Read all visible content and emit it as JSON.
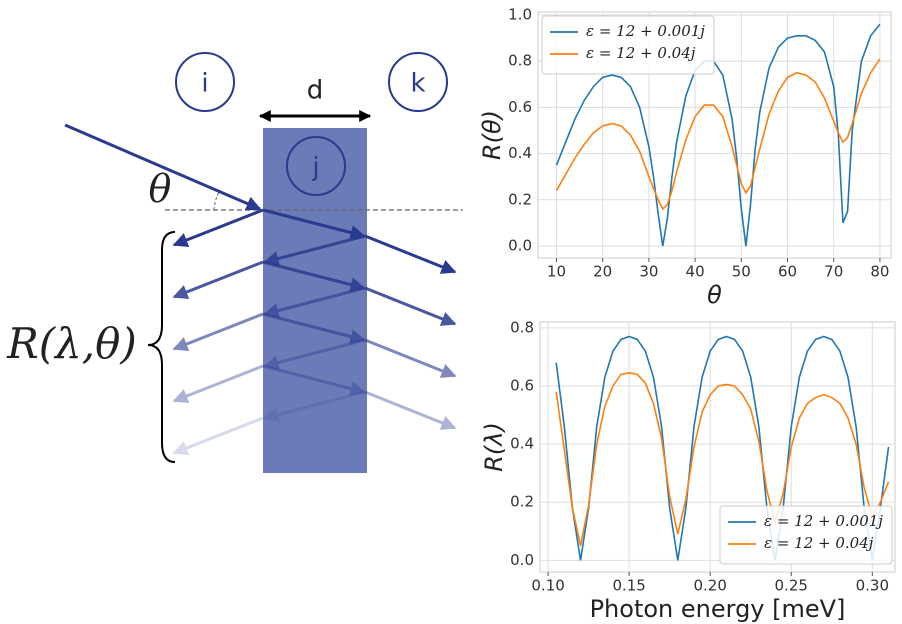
{
  "diagram": {
    "region_labels": [
      "i",
      "j",
      "k"
    ],
    "thickness_label": "d",
    "angle_label": "θ",
    "reflectance_label": "R(λ,θ)"
  },
  "chart_data": [
    {
      "type": "line",
      "xlabel": "θ",
      "ylabel": "R(θ)",
      "x": [
        10,
        12,
        14,
        16,
        18,
        20,
        22,
        24,
        26,
        28,
        30,
        31,
        32,
        33,
        34,
        35,
        36,
        38,
        40,
        42,
        44,
        46,
        48,
        49,
        50,
        51,
        52,
        53,
        54,
        56,
        58,
        60,
        62,
        64,
        66,
        68,
        70,
        71,
        72,
        73,
        74,
        76,
        78,
        80
      ],
      "series": [
        {
          "name": "ε = 12 + 0.001j",
          "color": "#1f77b4",
          "values": [
            0.35,
            0.45,
            0.55,
            0.63,
            0.69,
            0.73,
            0.74,
            0.73,
            0.69,
            0.6,
            0.43,
            0.3,
            0.14,
            0.0,
            0.12,
            0.3,
            0.45,
            0.65,
            0.76,
            0.8,
            0.8,
            0.74,
            0.55,
            0.38,
            0.16,
            0.0,
            0.18,
            0.42,
            0.58,
            0.77,
            0.86,
            0.9,
            0.91,
            0.91,
            0.89,
            0.84,
            0.69,
            0.48,
            0.1,
            0.15,
            0.5,
            0.8,
            0.91,
            0.96
          ]
        },
        {
          "name": "ε = 12 + 0.04j",
          "color": "#ff7f0e",
          "values": [
            0.24,
            0.31,
            0.38,
            0.44,
            0.49,
            0.52,
            0.53,
            0.52,
            0.48,
            0.41,
            0.3,
            0.25,
            0.2,
            0.16,
            0.18,
            0.24,
            0.32,
            0.46,
            0.56,
            0.61,
            0.61,
            0.56,
            0.43,
            0.35,
            0.27,
            0.23,
            0.26,
            0.34,
            0.42,
            0.57,
            0.67,
            0.73,
            0.75,
            0.74,
            0.71,
            0.64,
            0.54,
            0.49,
            0.45,
            0.47,
            0.53,
            0.66,
            0.75,
            0.81
          ]
        }
      ],
      "xlim": [
        6,
        82.4
      ],
      "ylim": [
        -0.052,
        1.013
      ],
      "xticks": [
        10,
        20,
        30,
        40,
        50,
        60,
        70,
        80
      ],
      "yticks": [
        {
          "value": 0,
          "label": "0.0"
        },
        0.2,
        0.4,
        0.6,
        0.8,
        {
          "value": 1,
          "label": "1.0"
        }
      ],
      "grid": true,
      "legend": "upper left"
    },
    {
      "type": "line",
      "xlabel": "Photon energy [meV]",
      "ylabel": "R(λ)",
      "x": [
        0.105,
        0.11,
        0.115,
        0.12,
        0.125,
        0.13,
        0.135,
        0.14,
        0.145,
        0.15,
        0.155,
        0.16,
        0.165,
        0.17,
        0.175,
        0.18,
        0.185,
        0.19,
        0.195,
        0.2,
        0.205,
        0.21,
        0.215,
        0.22,
        0.225,
        0.23,
        0.235,
        0.24,
        0.245,
        0.25,
        0.255,
        0.26,
        0.265,
        0.27,
        0.275,
        0.28,
        0.285,
        0.29,
        0.295,
        0.3,
        0.305,
        0.31
      ],
      "series": [
        {
          "name": "ε = 12 + 0.001j",
          "color": "#1f77b4",
          "values": [
            0.68,
            0.46,
            0.18,
            0,
            0.18,
            0.46,
            0.63,
            0.72,
            0.76,
            0.77,
            0.76,
            0.72,
            0.63,
            0.46,
            0.18,
            0,
            0.18,
            0.46,
            0.63,
            0.72,
            0.76,
            0.77,
            0.76,
            0.72,
            0.63,
            0.46,
            0.18,
            0,
            0.18,
            0.46,
            0.63,
            0.72,
            0.76,
            0.77,
            0.76,
            0.72,
            0.63,
            0.46,
            0.18,
            0,
            0.18,
            0.39
          ]
        },
        {
          "name": "ε = 12 + 0.04j",
          "color": "#ff7f0e",
          "values": [
            0.58,
            0.38,
            0.18,
            0.05,
            0.19,
            0.4,
            0.53,
            0.6,
            0.64,
            0.645,
            0.64,
            0.61,
            0.54,
            0.42,
            0.22,
            0.09,
            0.21,
            0.39,
            0.51,
            0.57,
            0.6,
            0.605,
            0.6,
            0.57,
            0.52,
            0.41,
            0.24,
            0.13,
            0.23,
            0.39,
            0.49,
            0.54,
            0.56,
            0.57,
            0.56,
            0.54,
            0.49,
            0.4,
            0.25,
            0.15,
            0.2,
            0.27
          ]
        }
      ],
      "xlim": [
        0.095,
        0.314
      ],
      "ylim": [
        -0.04,
        0.82
      ],
      "xticks": [
        {
          "value": 0.1,
          "label": "0.10"
        },
        0.15,
        {
          "value": 0.2,
          "label": "0.20"
        },
        0.25,
        {
          "value": 0.3,
          "label": "0.30"
        }
      ],
      "yticks": [
        {
          "value": 0,
          "label": "0.0"
        },
        0.2,
        0.4,
        0.6,
        0.8
      ],
      "grid": true,
      "legend": "lower right"
    }
  ]
}
